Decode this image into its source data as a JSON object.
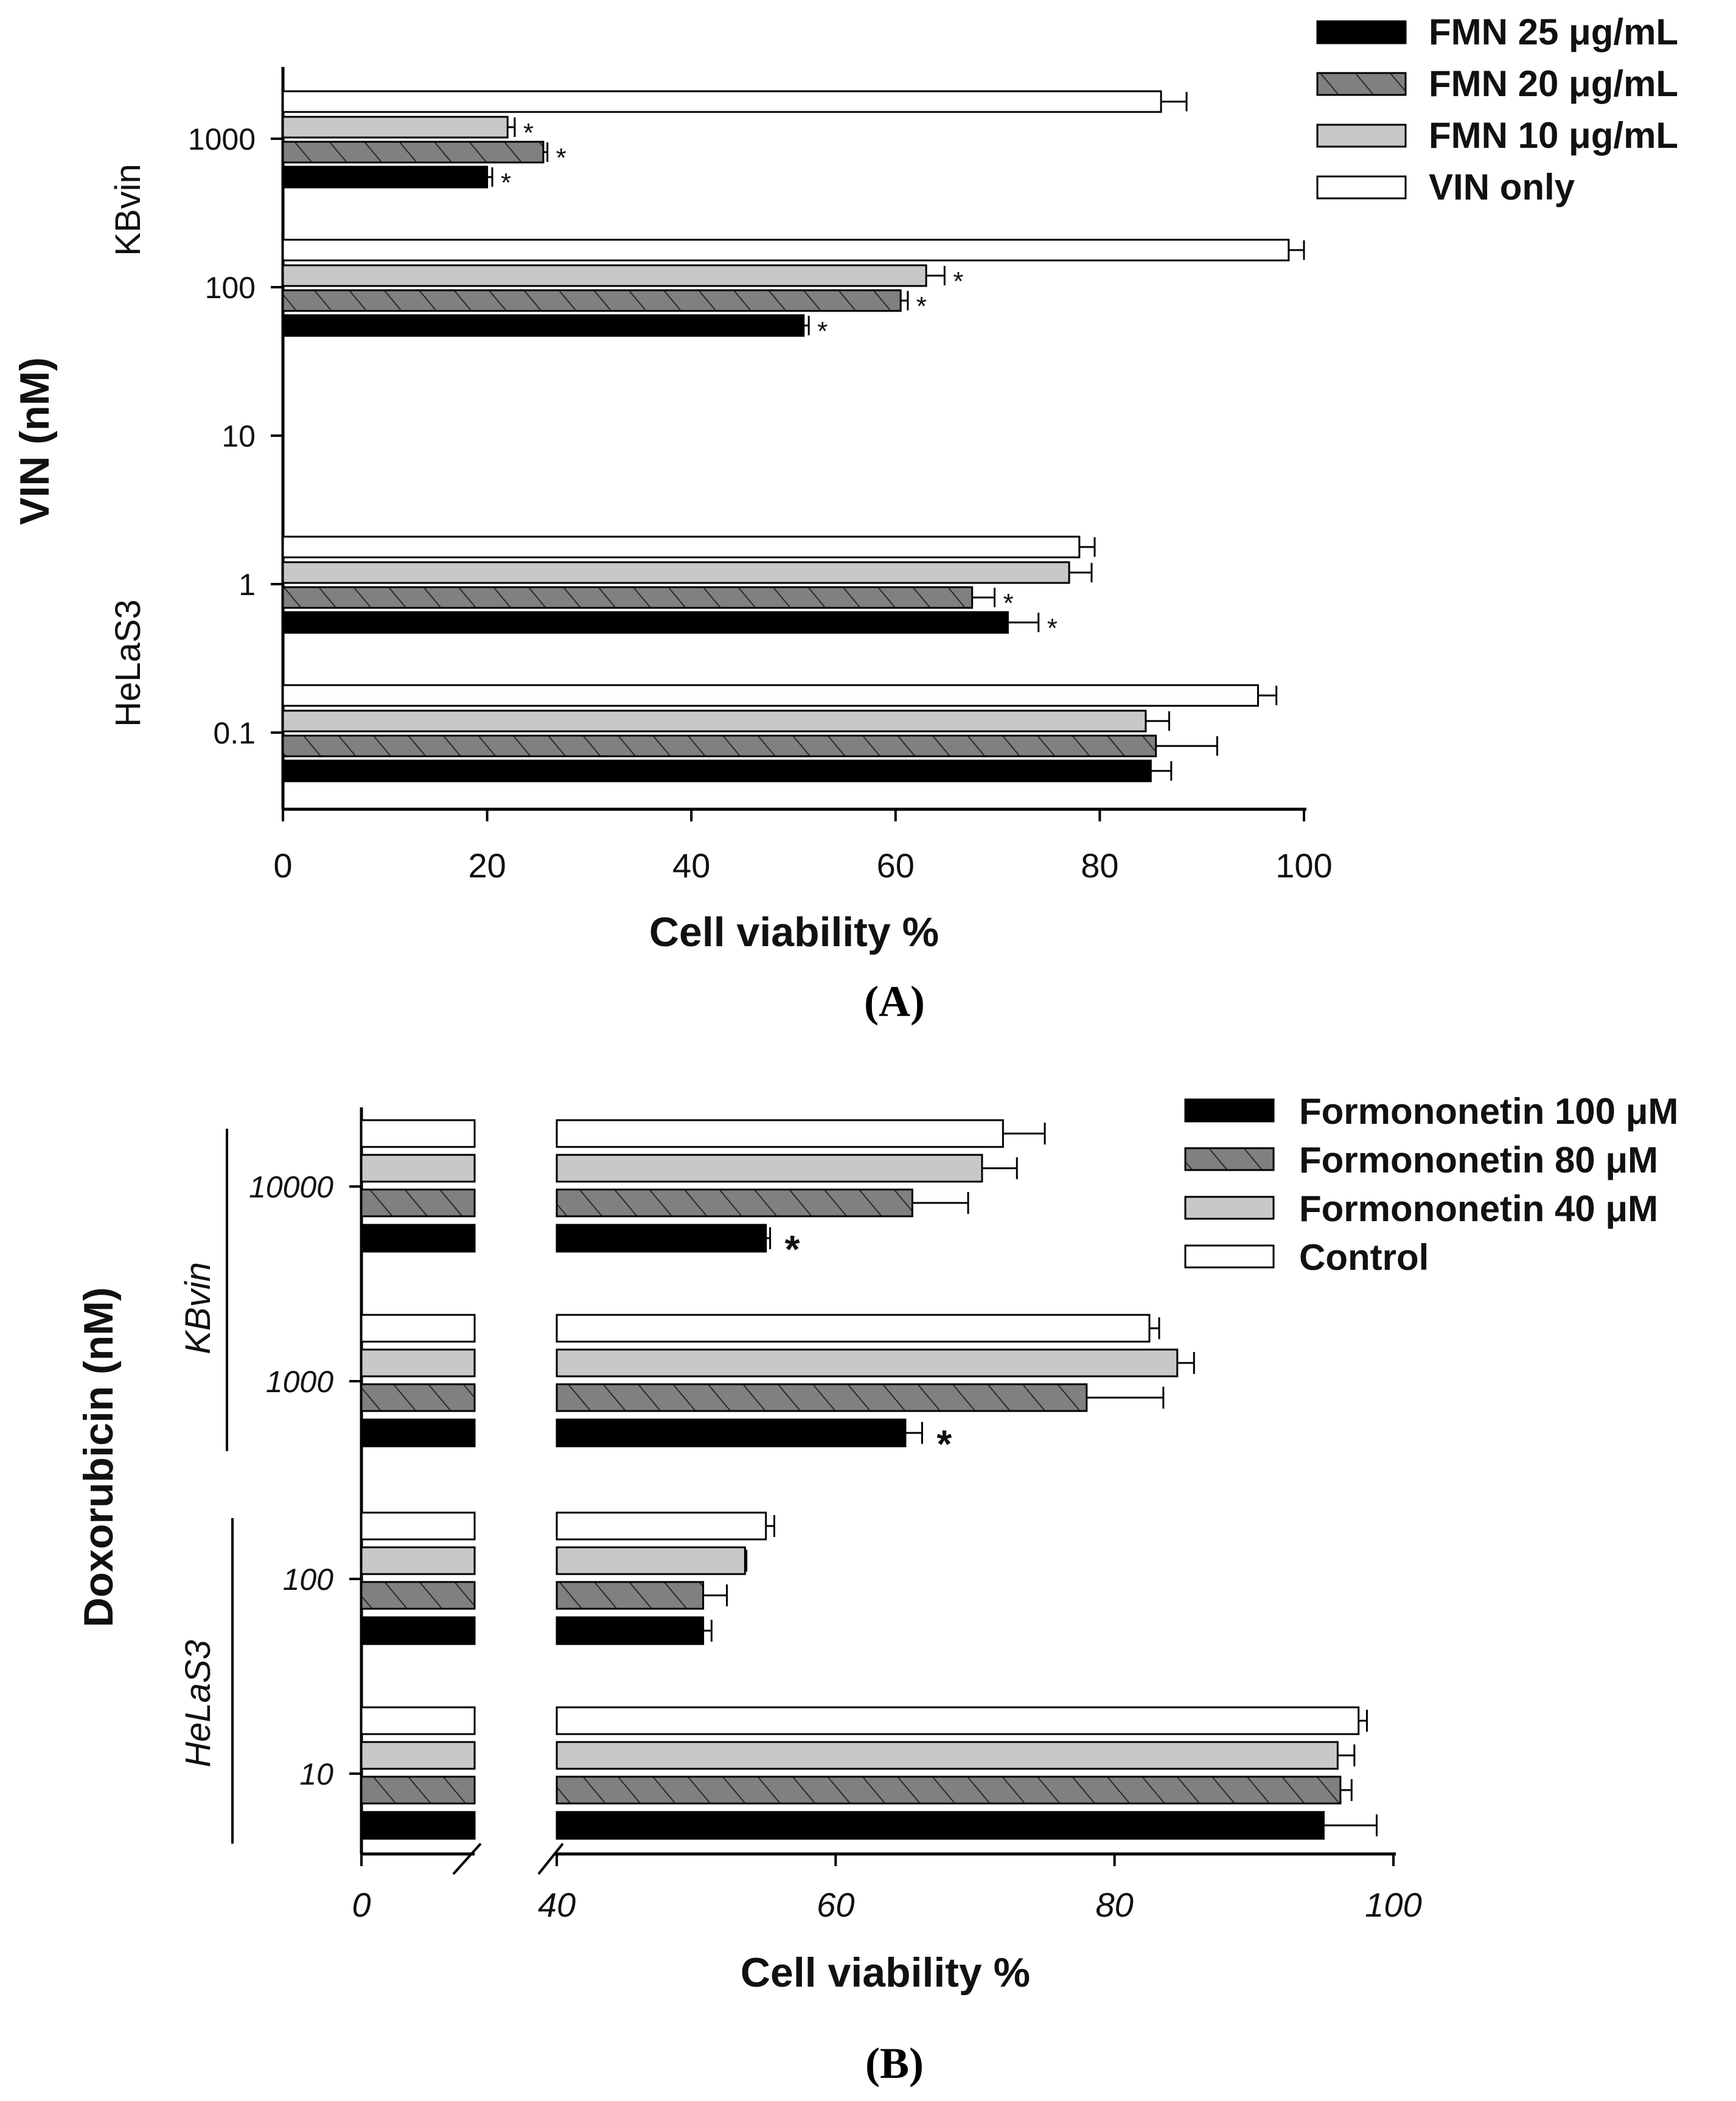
{
  "panels_caption": {
    "A": "(A)",
    "B": "(B)"
  },
  "colors": {
    "black": "#000000",
    "hatched": "#808080",
    "light": "#c8c8c8",
    "white": "#ffffff"
  },
  "chart_data": [
    {
      "type": "bar",
      "orientation": "horizontal",
      "panel": "A",
      "xlabel": "Cell viability %",
      "ylabel": "VIN (nM)",
      "xlim": [
        0,
        100
      ],
      "xticks": [
        "0",
        "20",
        "40",
        "60",
        "80",
        "100"
      ],
      "yticks": [
        "1000",
        "100",
        "10",
        "1",
        "0.1"
      ],
      "groups": [
        {
          "name": "KBvin",
          "categories": [
            "1000",
            "100"
          ]
        },
        {
          "name": "HeLaS3",
          "categories": [
            "1",
            "0.1"
          ]
        }
      ],
      "categories": [
        "1000",
        "100",
        "10",
        "1",
        "0.1"
      ],
      "series": [
        {
          "name": "VIN only",
          "fill": "white",
          "values": [
            86,
            98.5,
            null,
            78,
            95.5
          ],
          "errors": [
            2.5,
            1.5,
            null,
            1.5,
            1.8
          ],
          "significant": [
            false,
            false,
            false,
            false,
            false
          ]
        },
        {
          "name": "FMN 10 μg/mL",
          "fill": "light",
          "values": [
            22,
            63,
            null,
            77,
            84.5
          ],
          "errors": [
            0.7,
            1.8,
            null,
            2.2,
            2.3
          ],
          "significant": [
            true,
            true,
            false,
            false,
            false
          ]
        },
        {
          "name": "FMN 20 μg/mL",
          "fill": "hatched",
          "values": [
            25.5,
            60.5,
            null,
            67.5,
            85.5
          ],
          "errors": [
            0.4,
            0.7,
            null,
            2.2,
            6
          ],
          "significant": [
            true,
            true,
            false,
            true,
            false
          ]
        },
        {
          "name": "FMN 25 μg/mL",
          "fill": "black",
          "values": [
            20,
            51,
            null,
            71,
            85
          ],
          "errors": [
            0.5,
            0.5,
            null,
            3,
            2
          ],
          "significant": [
            true,
            true,
            false,
            true,
            false
          ]
        }
      ],
      "legend": [
        {
          "name": "FMN 25 μg/mL",
          "fill": "black"
        },
        {
          "name": "FMN 20 μg/mL",
          "fill": "hatched"
        },
        {
          "name": "FMN 10 μg/mL",
          "fill": "light"
        },
        {
          "name": "VIN only",
          "fill": "white"
        }
      ],
      "significance_marker": "*"
    },
    {
      "type": "bar",
      "orientation": "horizontal",
      "panel": "B",
      "xlabel": "Cell viability %",
      "ylabel": "Doxorubicin (nM)",
      "xlim": [
        0,
        100
      ],
      "axis_break": [
        20,
        40
      ],
      "xticks": [
        "0",
        "40",
        "60",
        "80",
        "100"
      ],
      "yticks": [
        "10000",
        "1000",
        "100",
        "10"
      ],
      "groups": [
        {
          "name": "KBvin",
          "categories": [
            "10000",
            "1000"
          ]
        },
        {
          "name": "HeLaS3",
          "categories": [
            "100",
            "10"
          ]
        }
      ],
      "categories": [
        "10000",
        "1000",
        "100",
        "10"
      ],
      "series": [
        {
          "name": "Control",
          "fill": "white",
          "values": [
            72,
            82.5,
            55,
            97.5
          ],
          "errors": [
            3,
            0.7,
            0.6,
            0.6
          ],
          "significant": [
            false,
            false,
            false,
            false
          ]
        },
        {
          "name": "Formononetin 40 μM",
          "fill": "light",
          "values": [
            70.5,
            84.5,
            53.5,
            96
          ],
          "errors": [
            2.5,
            1.2,
            0.1,
            1.2
          ],
          "significant": [
            false,
            false,
            false,
            false
          ]
        },
        {
          "name": "Formononetin 80 μM",
          "fill": "hatched",
          "values": [
            65.5,
            78,
            50.5,
            96.2
          ],
          "errors": [
            4,
            5.5,
            1.7,
            0.8
          ],
          "significant": [
            false,
            false,
            false,
            false
          ]
        },
        {
          "name": "Formononetin 100 μM",
          "fill": "black",
          "values": [
            55,
            65,
            50.5,
            95
          ],
          "errors": [
            0.3,
            1.2,
            0.6,
            3.8
          ],
          "significant": [
            true,
            true,
            false,
            false
          ]
        }
      ],
      "legend": [
        {
          "name": "Formononetin 100 μM",
          "fill": "black"
        },
        {
          "name": "Formononetin 80 μM",
          "fill": "hatched"
        },
        {
          "name": "Formononetin 40 μM",
          "fill": "light"
        },
        {
          "name": "Control",
          "fill": "white"
        }
      ],
      "significance_marker": "*"
    }
  ]
}
